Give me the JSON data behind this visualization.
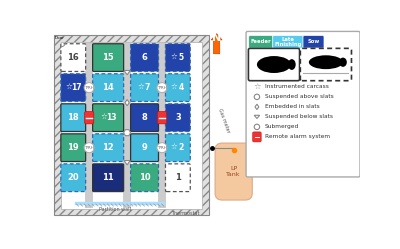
{
  "colors": {
    "green": "#3aaa80",
    "teal": "#44bbdd",
    "blue": "#2244aa",
    "dark_blue": "#1a2d7a",
    "none": "white"
  },
  "pen_data": [
    {
      "num": 16,
      "col": 0,
      "row": 0,
      "color": "none",
      "star": false,
      "dashed": true
    },
    {
      "num": 17,
      "col": 0,
      "row": 1,
      "color": "blue",
      "star": true,
      "dashed": true
    },
    {
      "num": 18,
      "col": 0,
      "row": 2,
      "color": "teal",
      "star": false,
      "dashed": false
    },
    {
      "num": 19,
      "col": 0,
      "row": 3,
      "color": "green",
      "star": false,
      "dashed": false
    },
    {
      "num": 20,
      "col": 0,
      "row": 4,
      "color": "teal",
      "star": false,
      "dashed": true
    },
    {
      "num": 15,
      "col": 1,
      "row": 0,
      "color": "green",
      "star": false,
      "dashed": false
    },
    {
      "num": 14,
      "col": 1,
      "row": 1,
      "color": "teal",
      "star": false,
      "dashed": true
    },
    {
      "num": 13,
      "col": 1,
      "row": 2,
      "color": "green",
      "star": true,
      "dashed": false
    },
    {
      "num": 12,
      "col": 1,
      "row": 3,
      "color": "teal",
      "star": false,
      "dashed": true
    },
    {
      "num": 11,
      "col": 1,
      "row": 4,
      "color": "dark_blue",
      "star": false,
      "dashed": false
    },
    {
      "num": 6,
      "col": 2,
      "row": 0,
      "color": "blue",
      "star": false,
      "dashed": true
    },
    {
      "num": 7,
      "col": 2,
      "row": 1,
      "color": "teal",
      "star": true,
      "dashed": true
    },
    {
      "num": 8,
      "col": 2,
      "row": 2,
      "color": "blue",
      "star": false,
      "dashed": false
    },
    {
      "num": 9,
      "col": 2,
      "row": 3,
      "color": "teal",
      "star": false,
      "dashed": false
    },
    {
      "num": 10,
      "col": 2,
      "row": 4,
      "color": "green",
      "star": false,
      "dashed": true
    },
    {
      "num": 5,
      "col": 3,
      "row": 0,
      "color": "blue",
      "star": true,
      "dashed": true
    },
    {
      "num": 4,
      "col": 3,
      "row": 1,
      "color": "teal",
      "star": true,
      "dashed": true
    },
    {
      "num": 3,
      "col": 3,
      "row": 2,
      "color": "blue",
      "star": false,
      "dashed": true
    },
    {
      "num": 2,
      "col": 3,
      "row": 3,
      "color": "teal",
      "star": true,
      "dashed": true
    },
    {
      "num": 1,
      "col": 3,
      "row": 4,
      "color": "none",
      "star": false,
      "dashed": true
    }
  ],
  "btn_colors": [
    "#3aaa80",
    "#55ccee",
    "#2244aa"
  ],
  "btn_labels": [
    "Feeder",
    "Late\nFinishing",
    "Sow"
  ],
  "legend_items": [
    "Instrumented carcass",
    "Suspended above slats",
    "Embedded in slats",
    "Suspended below slats",
    "Submerged",
    "Remote alarm system"
  ]
}
